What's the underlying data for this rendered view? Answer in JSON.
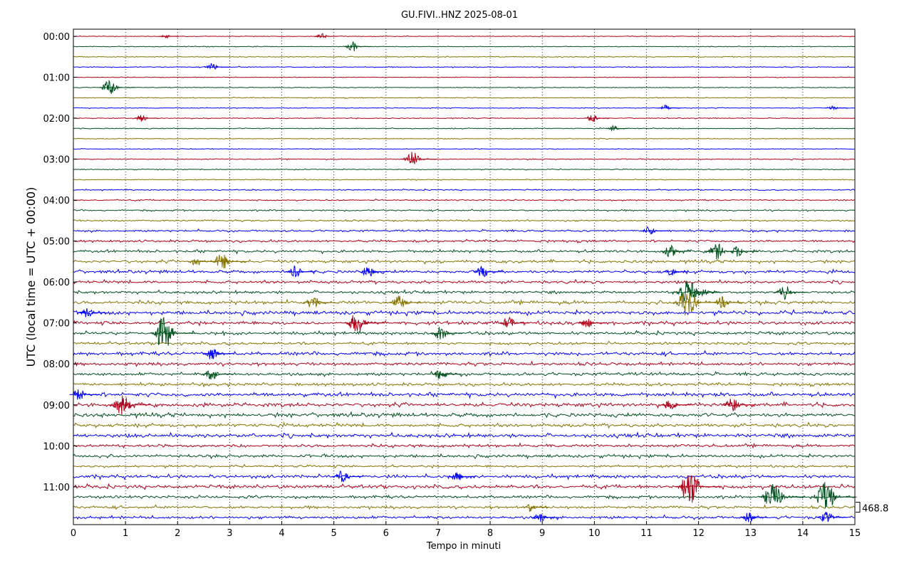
{
  "chart_data": {
    "type": "helicorder",
    "title": "GU.FIVI..HNZ 2025-08-01",
    "xlabel": "Tempo in minuti",
    "ylabel": "UTC (local time = UTC + 00:00)",
    "xlim": [
      0,
      15
    ],
    "xticks": [
      0,
      1,
      2,
      3,
      4,
      5,
      6,
      7,
      8,
      9,
      10,
      11,
      12,
      13,
      14,
      15
    ],
    "ylim": [
      47.7,
      -0.7
    ],
    "yticks": [
      {
        "value": 0,
        "label": "00:00"
      },
      {
        "value": 4,
        "label": "01:00"
      },
      {
        "value": 8,
        "label": "02:00"
      },
      {
        "value": 12,
        "label": "03:00"
      },
      {
        "value": 16,
        "label": "04:00"
      },
      {
        "value": 20,
        "label": "05:00"
      },
      {
        "value": 24,
        "label": "06:00"
      },
      {
        "value": 28,
        "label": "07:00"
      },
      {
        "value": 32,
        "label": "08:00"
      },
      {
        "value": 36,
        "label": "09:00"
      },
      {
        "value": 40,
        "label": "10:00"
      },
      {
        "value": 44,
        "label": "11:00"
      }
    ],
    "grid": true,
    "trace_colors": [
      "#b00018",
      "#00501e",
      "#857300",
      "#0000ff"
    ],
    "noise": [
      0.04,
      0.04,
      0.05,
      0.05,
      0.04,
      0.04,
      0.05,
      0.04,
      0.05,
      0.05,
      0.04,
      0.04,
      0.05,
      0.05,
      0.05,
      0.06,
      0.07,
      0.08,
      0.09,
      0.1,
      0.12,
      0.14,
      0.15,
      0.16,
      0.15,
      0.15,
      0.18,
      0.2,
      0.18,
      0.16,
      0.14,
      0.18,
      0.16,
      0.16,
      0.15,
      0.2,
      0.2,
      0.2,
      0.18,
      0.2,
      0.16,
      0.16,
      0.12,
      0.18,
      0.18,
      0.15,
      0.14,
      0.15
    ],
    "events": [
      {
        "trace": 0,
        "x": 4.8,
        "amplitude": 0.3
      },
      {
        "trace": 0,
        "x": 1.8,
        "amplitude": 0.2
      },
      {
        "trace": 1,
        "x": 5.4,
        "amplitude": 0.5
      },
      {
        "trace": 3,
        "x": 2.7,
        "amplitude": 0.4
      },
      {
        "trace": 5,
        "x": 0.75,
        "amplitude": 0.8
      },
      {
        "trace": 7,
        "x": 11.4,
        "amplitude": 0.3
      },
      {
        "trace": 7,
        "x": 14.6,
        "amplitude": 0.3
      },
      {
        "trace": 8,
        "x": 1.35,
        "amplitude": 0.35
      },
      {
        "trace": 8,
        "x": 10,
        "amplitude": 0.4
      },
      {
        "trace": 9,
        "x": 10.4,
        "amplitude": 0.3
      },
      {
        "trace": 12,
        "x": 6.55,
        "amplitude": 0.8
      },
      {
        "trace": 19,
        "x": 11.1,
        "amplitude": 0.5
      },
      {
        "trace": 21,
        "x": 11.5,
        "amplitude": 0.6
      },
      {
        "trace": 21,
        "x": 12.8,
        "amplitude": 0.6
      },
      {
        "trace": 21,
        "x": 12.4,
        "amplitude": 0.8
      },
      {
        "trace": 22,
        "x": 2.9,
        "amplitude": 0.8
      },
      {
        "trace": 22,
        "x": 2.4,
        "amplitude": 0.5
      },
      {
        "trace": 23,
        "x": 5.7,
        "amplitude": 0.6
      },
      {
        "trace": 23,
        "x": 4.3,
        "amplitude": 0.6
      },
      {
        "trace": 23,
        "x": 7.9,
        "amplitude": 0.6
      },
      {
        "trace": 23,
        "x": 11.5,
        "amplitude": 0.4
      },
      {
        "trace": 25,
        "x": 13.7,
        "amplitude": 0.7
      },
      {
        "trace": 25,
        "x": 12.1,
        "amplitude": 0.5
      },
      {
        "trace": 25,
        "x": 11.85,
        "amplitude": 1.3
      },
      {
        "trace": 26,
        "x": 4.65,
        "amplitude": 0.7
      },
      {
        "trace": 26,
        "x": 11.85,
        "amplitude": 1.4
      },
      {
        "trace": 26,
        "x": 6.3,
        "amplitude": 0.7
      },
      {
        "trace": 26,
        "x": 12.5,
        "amplitude": 0.6
      },
      {
        "trace": 27,
        "x": 0.3,
        "amplitude": 0.5
      },
      {
        "trace": 28,
        "x": 5.5,
        "amplitude": 1.0
      },
      {
        "trace": 28,
        "x": 8.4,
        "amplitude": 0.6
      },
      {
        "trace": 28,
        "x": 9.9,
        "amplitude": 0.5
      },
      {
        "trace": 29,
        "x": 1.8,
        "amplitude": 1.6
      },
      {
        "trace": 29,
        "x": 7.1,
        "amplitude": 0.7
      },
      {
        "trace": 31,
        "x": 2.7,
        "amplitude": 0.6
      },
      {
        "trace": 33,
        "x": 2.7,
        "amplitude": 0.6
      },
      {
        "trace": 33,
        "x": 7.1,
        "amplitude": 0.6
      },
      {
        "trace": 35,
        "x": 0.15,
        "amplitude": 0.6
      },
      {
        "trace": 36,
        "x": 1.0,
        "amplitude": 1.0
      },
      {
        "trace": 36,
        "x": 12.7,
        "amplitude": 0.7
      },
      {
        "trace": 36,
        "x": 11.5,
        "amplitude": 0.6
      },
      {
        "trace": 43,
        "x": 5.2,
        "amplitude": 0.6
      },
      {
        "trace": 43,
        "x": 7.4,
        "amplitude": 0.5
      },
      {
        "trace": 44,
        "x": 11.9,
        "amplitude": 1.8
      },
      {
        "trace": 45,
        "x": 13.5,
        "amplitude": 1.3
      },
      {
        "trace": 45,
        "x": 14.5,
        "amplitude": 1.6
      },
      {
        "trace": 46,
        "x": 8.8,
        "amplitude": 0.5
      },
      {
        "trace": 47,
        "x": 9.0,
        "amplitude": 0.5
      },
      {
        "trace": 47,
        "x": 14.5,
        "amplitude": 0.6
      },
      {
        "trace": 47,
        "x": 13.0,
        "amplitude": 0.5
      }
    ],
    "scale_trace": 46,
    "scale": 468.8
  }
}
